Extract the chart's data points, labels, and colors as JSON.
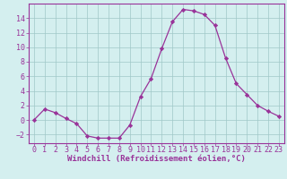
{
  "x": [
    0,
    1,
    2,
    3,
    4,
    5,
    6,
    7,
    8,
    9,
    10,
    11,
    12,
    13,
    14,
    15,
    16,
    17,
    18,
    19,
    20,
    21,
    22,
    23
  ],
  "y": [
    0,
    1.5,
    1.0,
    0.2,
    -0.5,
    -2.2,
    -2.5,
    -2.5,
    -2.5,
    -0.7,
    3.2,
    5.7,
    9.8,
    13.5,
    15.2,
    15.0,
    14.5,
    13.0,
    8.5,
    5.0,
    3.5,
    2.0,
    1.2,
    0.5
  ],
  "line_color": "#993399",
  "marker": "D",
  "marker_size": 2.2,
  "background_color": "#d4efef",
  "grid_color": "#a0c8c8",
  "xlabel": "Windchill (Refroidissement éolien,°C)",
  "ylim": [
    -3.2,
    16.0
  ],
  "xlim": [
    -0.5,
    23.5
  ],
  "yticks": [
    -2,
    0,
    2,
    4,
    6,
    8,
    10,
    12,
    14
  ],
  "xticks": [
    0,
    1,
    2,
    3,
    4,
    5,
    6,
    7,
    8,
    9,
    10,
    11,
    12,
    13,
    14,
    15,
    16,
    17,
    18,
    19,
    20,
    21,
    22,
    23
  ],
  "tick_color": "#993399",
  "label_color": "#993399",
  "xlabel_fontsize": 6.5,
  "tick_fontsize": 6.0,
  "spine_color": "#993399"
}
